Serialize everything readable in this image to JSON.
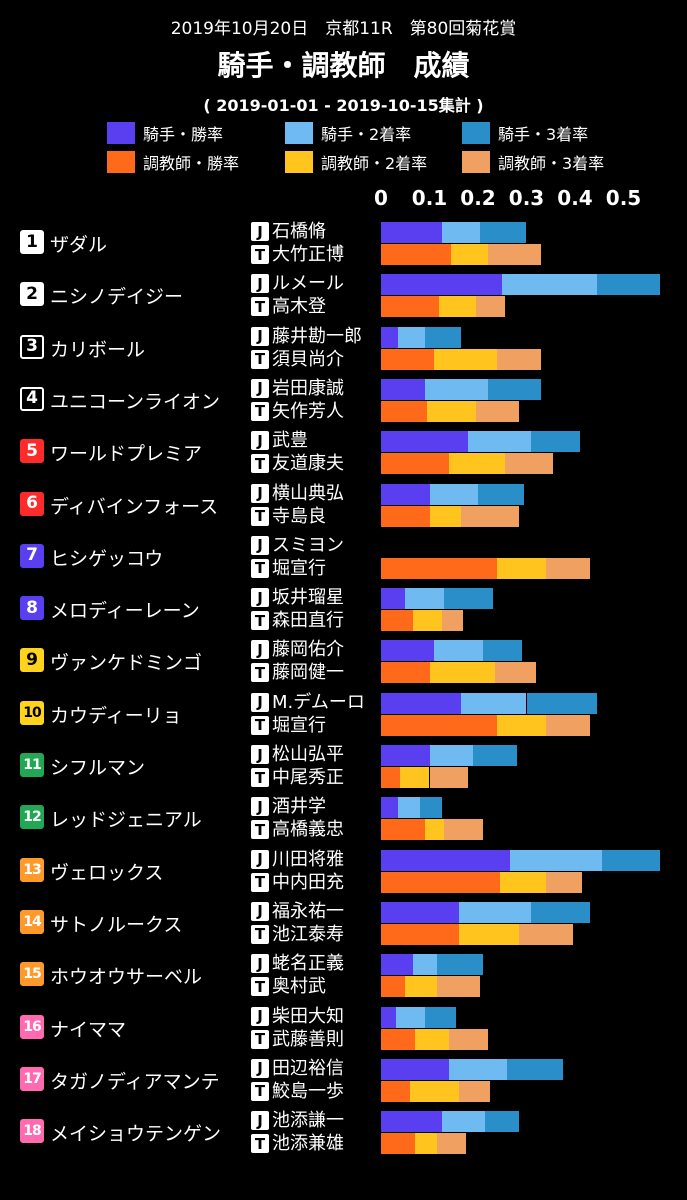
{
  "header": {
    "date_line": "2019年10月20日　京都11R　第80回菊花賞",
    "title": "騎手・調教師　成績",
    "period": "( 2019-01-01 - 2019-10-15集計 )"
  },
  "chart_data": {
    "type": "bar",
    "orientation": "horizontal",
    "stacked": true,
    "xlim": [
      0,
      0.58
    ],
    "xticks": [
      "0",
      "0.1",
      "0.2",
      "0.3",
      "0.4",
      "0.5"
    ],
    "legend": [
      {
        "label": "騎手・勝率",
        "color": "#5a3ff0"
      },
      {
        "label": "騎手・2着率",
        "color": "#6fbaf0"
      },
      {
        "label": "騎手・3着率",
        "color": "#2a8fc8"
      },
      {
        "label": "調教師・勝率",
        "color": "#ff6a1a"
      },
      {
        "label": "調教師・2着率",
        "color": "#ffc41e"
      },
      {
        "label": "調教師・3着率",
        "color": "#f0a060"
      }
    ],
    "jockey_badge": "J",
    "trainer_badge": "T",
    "entries": [
      {
        "no": "1",
        "gate_bg": "#ffffff",
        "gate_fg": "#000000",
        "gate_border": "#ffffff",
        "horse": "ザダル",
        "jockey": "石橋脩",
        "trainer": "大竹正博",
        "jockey_rates": [
          0.125,
          0.205,
          0.3
        ],
        "trainer_rates": [
          0.145,
          0.22,
          0.33
        ]
      },
      {
        "no": "2",
        "gate_bg": "#ffffff",
        "gate_fg": "#000000",
        "gate_border": "#ffffff",
        "horse": "ニシノデイジー",
        "jockey": "ルメール",
        "trainer": "高木登",
        "jockey_rates": [
          0.25,
          0.445,
          0.575
        ],
        "trainer_rates": [
          0.12,
          0.195,
          0.255
        ]
      },
      {
        "no": "3",
        "gate_bg": "#000000",
        "gate_fg": "#ffffff",
        "gate_border": "#ffffff",
        "horse": "カリボール",
        "jockey": "藤井勘一郎",
        "trainer": "須貝尚介",
        "jockey_rates": [
          0.035,
          0.09,
          0.165
        ],
        "trainer_rates": [
          0.11,
          0.24,
          0.33
        ]
      },
      {
        "no": "4",
        "gate_bg": "#000000",
        "gate_fg": "#ffffff",
        "gate_border": "#ffffff",
        "horse": "ユニコーンライオン",
        "jockey": "岩田康誠",
        "trainer": "矢作芳人",
        "jockey_rates": [
          0.09,
          0.22,
          0.33
        ],
        "trainer_rates": [
          0.095,
          0.195,
          0.285
        ]
      },
      {
        "no": "5",
        "gate_bg": "#ff2a2a",
        "gate_fg": "#ffffff",
        "gate_border": "#ff2a2a",
        "horse": "ワールドプレミア",
        "jockey": "武豊",
        "trainer": "友道康夫",
        "jockey_rates": [
          0.18,
          0.31,
          0.41
        ],
        "trainer_rates": [
          0.14,
          0.255,
          0.355
        ]
      },
      {
        "no": "6",
        "gate_bg": "#ff2a2a",
        "gate_fg": "#ffffff",
        "gate_border": "#ff2a2a",
        "horse": "ディバインフォース",
        "jockey": "横山典弘",
        "trainer": "寺島良",
        "jockey_rates": [
          0.1,
          0.2,
          0.295
        ],
        "trainer_rates": [
          0.1,
          0.165,
          0.285
        ]
      },
      {
        "no": "7",
        "gate_bg": "#5a3ff0",
        "gate_fg": "#ffffff",
        "gate_border": "#5a3ff0",
        "horse": "ヒシゲッコウ",
        "jockey": "スミヨン",
        "trainer": "堀宣行",
        "jockey_rates": [
          0,
          0,
          0
        ],
        "trainer_rates": [
          0.24,
          0.34,
          0.43
        ]
      },
      {
        "no": "8",
        "gate_bg": "#5a3ff0",
        "gate_fg": "#ffffff",
        "gate_border": "#5a3ff0",
        "horse": "メロディーレーン",
        "jockey": "坂井瑠星",
        "trainer": "森田直行",
        "jockey_rates": [
          0.05,
          0.13,
          0.23
        ],
        "trainer_rates": [
          0.065,
          0.125,
          0.17
        ]
      },
      {
        "no": "9",
        "gate_bg": "#ffd21e",
        "gate_fg": "#000000",
        "gate_border": "#ffd21e",
        "horse": "ヴァンケドミンゴ",
        "jockey": "藤岡佑介",
        "trainer": "藤岡健一",
        "jockey_rates": [
          0.11,
          0.21,
          0.29
        ],
        "trainer_rates": [
          0.1,
          0.235,
          0.32
        ]
      },
      {
        "no": "10",
        "gate_bg": "#ffd21e",
        "gate_fg": "#000000",
        "gate_border": "#ffd21e",
        "horse": "カウディーリョ",
        "jockey": "M.デムーロ",
        "trainer": "堀宣行",
        "jockey_rates": [
          0.165,
          0.3,
          0.445
        ],
        "trainer_rates": [
          0.24,
          0.34,
          0.43
        ]
      },
      {
        "no": "11",
        "gate_bg": "#22a855",
        "gate_fg": "#ffffff",
        "gate_border": "#22a855",
        "horse": "シフルマン",
        "jockey": "松山弘平",
        "trainer": "中尾秀正",
        "jockey_rates": [
          0.1,
          0.19,
          0.28
        ],
        "trainer_rates": [
          0.04,
          0.1,
          0.18
        ]
      },
      {
        "no": "12",
        "gate_bg": "#22a855",
        "gate_fg": "#ffffff",
        "gate_border": "#22a855",
        "horse": "レッドジェニアル",
        "jockey": "酒井学",
        "trainer": "高橋義忠",
        "jockey_rates": [
          0.035,
          0.08,
          0.125
        ],
        "trainer_rates": [
          0.09,
          0.13,
          0.21
        ]
      },
      {
        "no": "13",
        "gate_bg": "#ff9a2a",
        "gate_fg": "#ffffff",
        "gate_border": "#ff9a2a",
        "horse": "ヴェロックス",
        "jockey": "川田将雅",
        "trainer": "中内田充",
        "jockey_rates": [
          0.265,
          0.455,
          0.575
        ],
        "trainer_rates": [
          0.245,
          0.34,
          0.415
        ]
      },
      {
        "no": "14",
        "gate_bg": "#ff9a2a",
        "gate_fg": "#ffffff",
        "gate_border": "#ff9a2a",
        "horse": "サトノルークス",
        "jockey": "福永祐一",
        "trainer": "池江泰寿",
        "jockey_rates": [
          0.16,
          0.31,
          0.43
        ],
        "trainer_rates": [
          0.16,
          0.285,
          0.395
        ]
      },
      {
        "no": "15",
        "gate_bg": "#ff9a2a",
        "gate_fg": "#ffffff",
        "gate_border": "#ff9a2a",
        "horse": "ホウオウサーベル",
        "jockey": "蛯名正義",
        "trainer": "奥村武",
        "jockey_rates": [
          0.065,
          0.115,
          0.21
        ],
        "trainer_rates": [
          0.05,
          0.115,
          0.205
        ]
      },
      {
        "no": "16",
        "gate_bg": "#ff6ab0",
        "gate_fg": "#ffffff",
        "gate_border": "#ff6ab0",
        "horse": "ナイママ",
        "jockey": "柴田大知",
        "trainer": "武藤善則",
        "jockey_rates": [
          0.03,
          0.09,
          0.155
        ],
        "trainer_rates": [
          0.07,
          0.14,
          0.22
        ]
      },
      {
        "no": "17",
        "gate_bg": "#ff6ab0",
        "gate_fg": "#ffffff",
        "gate_border": "#ff6ab0",
        "horse": "タガノディアマンテ",
        "jockey": "田辺裕信",
        "trainer": "鮫島一歩",
        "jockey_rates": [
          0.14,
          0.26,
          0.375
        ],
        "trainer_rates": [
          0.06,
          0.16,
          0.225
        ]
      },
      {
        "no": "18",
        "gate_bg": "#ff6ab0",
        "gate_fg": "#ffffff",
        "gate_border": "#ff6ab0",
        "horse": "メイショウテンゲン",
        "jockey": "池添謙一",
        "trainer": "池添兼雄",
        "jockey_rates": [
          0.125,
          0.215,
          0.285
        ],
        "trainer_rates": [
          0.07,
          0.115,
          0.175
        ]
      }
    ]
  }
}
